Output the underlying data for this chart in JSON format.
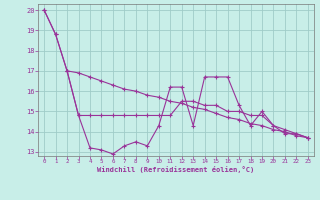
{
  "xlabel": "Windchill (Refroidissement éolien,°C)",
  "background_color": "#c8eee8",
  "grid_color": "#a0ccc8",
  "line_color": "#993399",
  "xlim": [
    -0.5,
    23.5
  ],
  "ylim": [
    12.8,
    20.3
  ],
  "xticks": [
    0,
    1,
    2,
    3,
    4,
    5,
    6,
    7,
    8,
    9,
    10,
    11,
    12,
    13,
    14,
    15,
    16,
    17,
    18,
    19,
    20,
    21,
    22,
    23
  ],
  "yticks": [
    13,
    14,
    15,
    16,
    17,
    18,
    19,
    20
  ],
  "series1_x": [
    0,
    1,
    2,
    3,
    4,
    5,
    6,
    7,
    8,
    9,
    10,
    11,
    12,
    13,
    14,
    15,
    16,
    17,
    18,
    19,
    20,
    21,
    22,
    23
  ],
  "series1_y": [
    20.0,
    18.8,
    17.0,
    16.9,
    16.7,
    16.5,
    16.3,
    16.1,
    16.0,
    15.8,
    15.7,
    15.5,
    15.4,
    15.2,
    15.1,
    14.9,
    14.7,
    14.6,
    14.4,
    14.3,
    14.1,
    14.0,
    13.8,
    13.7
  ],
  "series2_x": [
    0,
    1,
    2,
    3,
    4,
    5,
    6,
    7,
    8,
    9,
    10,
    11,
    12,
    13,
    14,
    15,
    16,
    17,
    18,
    19,
    20,
    21,
    22,
    23
  ],
  "series2_y": [
    20.0,
    18.8,
    17.0,
    14.8,
    13.2,
    13.1,
    12.9,
    13.3,
    13.5,
    13.3,
    14.3,
    16.2,
    16.2,
    14.3,
    16.7,
    16.7,
    16.7,
    15.3,
    14.3,
    15.0,
    14.3,
    13.9,
    13.9,
    13.7
  ],
  "series3_x": [
    2,
    3,
    4,
    5,
    6,
    7,
    8,
    9,
    10,
    11,
    12,
    13,
    14,
    15,
    16,
    17,
    18,
    19,
    20,
    21,
    22,
    23
  ],
  "series3_y": [
    17.0,
    14.8,
    14.8,
    14.8,
    14.8,
    14.8,
    14.8,
    14.8,
    14.8,
    14.8,
    15.5,
    15.5,
    15.3,
    15.3,
    15.0,
    15.0,
    14.8,
    14.8,
    14.3,
    14.1,
    13.9,
    13.7
  ]
}
